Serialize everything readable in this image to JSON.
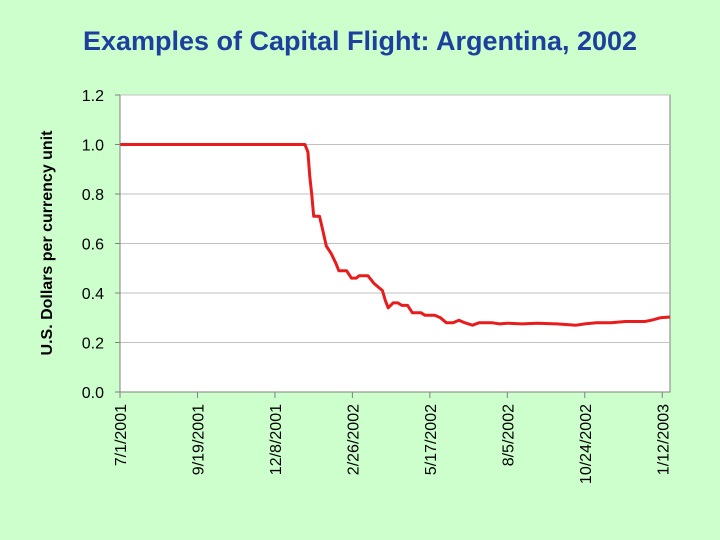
{
  "slide": {
    "title": "Examples of Capital Flight:  Argentina, 2002"
  },
  "colors": {
    "background": "#ccffcc",
    "title": "#1f3f9f",
    "plot_area": "#ffffff",
    "series_line": "#e81c1c",
    "gridline": "#c0c0c0"
  },
  "chart_data": {
    "type": "line",
    "title": "",
    "xlabel": "",
    "ylabel": "U.S. Dollars per currency unit",
    "x_tick_labels": [
      "7/1/2001",
      "9/19/2001",
      "12/8/2001",
      "2/26/2002",
      "5/17/2002",
      "8/5/2002",
      "10/24/2002",
      "1/12/2003"
    ],
    "x_tick_dates": [
      "2001-07-01",
      "2001-09-19",
      "2001-12-08",
      "2002-02-26",
      "2002-05-17",
      "2002-08-05",
      "2002-10-24",
      "2003-01-12"
    ],
    "xlim": [
      "2001-07-01",
      "2003-01-20"
    ],
    "ylim": [
      0,
      1.2
    ],
    "y_ticks": [
      0.0,
      0.2,
      0.4,
      0.6,
      0.8,
      1.0,
      1.2
    ],
    "y_tick_labels": [
      "0.0",
      "0.2",
      "0.4",
      "0.6",
      "0.8",
      "1.0",
      "1.2"
    ],
    "grid": "horizontal",
    "legend": "none",
    "series": [
      {
        "name": "",
        "points": [
          [
            "2001-07-01",
            1.0
          ],
          [
            "2001-08-15",
            1.0
          ],
          [
            "2001-10-01",
            1.0
          ],
          [
            "2001-11-15",
            1.0
          ],
          [
            "2001-12-20",
            1.0
          ],
          [
            "2002-01-01",
            1.0
          ],
          [
            "2002-01-08",
            1.0
          ],
          [
            "2002-01-11",
            0.97
          ],
          [
            "2002-01-13",
            0.87
          ],
          [
            "2002-01-15",
            0.8
          ],
          [
            "2002-01-17",
            0.71
          ],
          [
            "2002-01-23",
            0.71
          ],
          [
            "2002-01-26",
            0.66
          ],
          [
            "2002-01-30",
            0.59
          ],
          [
            "2002-02-04",
            0.56
          ],
          [
            "2002-02-09",
            0.52
          ],
          [
            "2002-02-12",
            0.49
          ],
          [
            "2002-02-20",
            0.49
          ],
          [
            "2002-02-25",
            0.46
          ],
          [
            "2002-03-02",
            0.46
          ],
          [
            "2002-03-05",
            0.47
          ],
          [
            "2002-03-14",
            0.47
          ],
          [
            "2002-03-20",
            0.44
          ],
          [
            "2002-03-26",
            0.42
          ],
          [
            "2002-03-29",
            0.41
          ],
          [
            "2002-04-01",
            0.37
          ],
          [
            "2002-04-04",
            0.34
          ],
          [
            "2002-04-09",
            0.36
          ],
          [
            "2002-04-14",
            0.36
          ],
          [
            "2002-04-18",
            0.35
          ],
          [
            "2002-04-24",
            0.35
          ],
          [
            "2002-04-29",
            0.32
          ],
          [
            "2002-05-08",
            0.32
          ],
          [
            "2002-05-12",
            0.31
          ],
          [
            "2002-05-22",
            0.31
          ],
          [
            "2002-05-28",
            0.3
          ],
          [
            "2002-06-03",
            0.28
          ],
          [
            "2002-06-10",
            0.28
          ],
          [
            "2002-06-16",
            0.29
          ],
          [
            "2002-06-22",
            0.28
          ],
          [
            "2002-06-30",
            0.27
          ],
          [
            "2002-07-07",
            0.28
          ],
          [
            "2002-07-20",
            0.28
          ],
          [
            "2002-07-28",
            0.275
          ],
          [
            "2002-08-05",
            0.278
          ],
          [
            "2002-08-20",
            0.275
          ],
          [
            "2002-09-05",
            0.278
          ],
          [
            "2002-09-25",
            0.275
          ],
          [
            "2002-10-15",
            0.27
          ],
          [
            "2002-10-24",
            0.275
          ],
          [
            "2002-11-05",
            0.28
          ],
          [
            "2002-11-20",
            0.28
          ],
          [
            "2002-12-05",
            0.285
          ],
          [
            "2002-12-25",
            0.285
          ],
          [
            "2003-01-01",
            0.29
          ],
          [
            "2003-01-10",
            0.3
          ],
          [
            "2003-01-20",
            0.303
          ]
        ]
      }
    ]
  }
}
